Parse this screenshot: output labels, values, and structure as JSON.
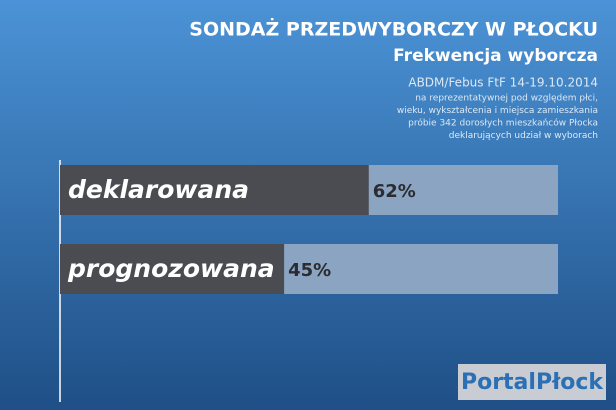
{
  "chart_data": {
    "type": "bar",
    "orientation": "horizontal",
    "title": "SONDAŻ PRZEDWYBORCZY W PŁOCKU",
    "subtitle": "Frekwencja wyborcza",
    "source": "ABDM/Febus FtF 14-19.10.2014",
    "note": [
      "na reprezentatywnej pod względem płci,",
      "wieku, wykształcenia i miejsca zamieszkania",
      "próbie 342 dorosłych mieszkańców Płocka",
      "deklarujących udział w wyborach"
    ],
    "categories": [
      "deklarowana",
      "prognozowana"
    ],
    "values": [
      62,
      45
    ],
    "value_labels": [
      "62%",
      "45%"
    ],
    "xlim": [
      0,
      100
    ],
    "color": "#4a4c51",
    "track_color": "#8ba4c2",
    "logo": "PortalPłock"
  }
}
